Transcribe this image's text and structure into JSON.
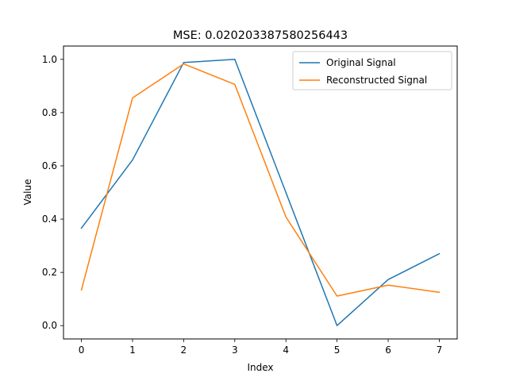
{
  "chart_data": {
    "type": "line",
    "title": "MSE: 0.020203387580256443",
    "xlabel": "Index",
    "ylabel": "Value",
    "x": [
      0,
      1,
      2,
      3,
      4,
      5,
      6,
      7
    ],
    "xlim": [
      -0.35,
      7.35
    ],
    "ylim": [
      -0.05,
      1.05
    ],
    "xticks": [
      "0",
      "1",
      "2",
      "3",
      "4",
      "5",
      "6",
      "7"
    ],
    "yticks": [
      "0.0",
      "0.2",
      "0.4",
      "0.6",
      "0.8",
      "1.0"
    ],
    "grid": false,
    "legend_position": "upper right",
    "series": [
      {
        "name": "Original Signal",
        "color": "#1f77b4",
        "values": [
          0.366,
          0.622,
          0.988,
          1.0,
          0.5,
          0.0,
          0.173,
          0.27
        ]
      },
      {
        "name": "Reconstructed Signal",
        "color": "#ff7f0e",
        "values": [
          0.134,
          0.855,
          0.983,
          0.906,
          0.408,
          0.111,
          0.152,
          0.125
        ]
      }
    ]
  }
}
